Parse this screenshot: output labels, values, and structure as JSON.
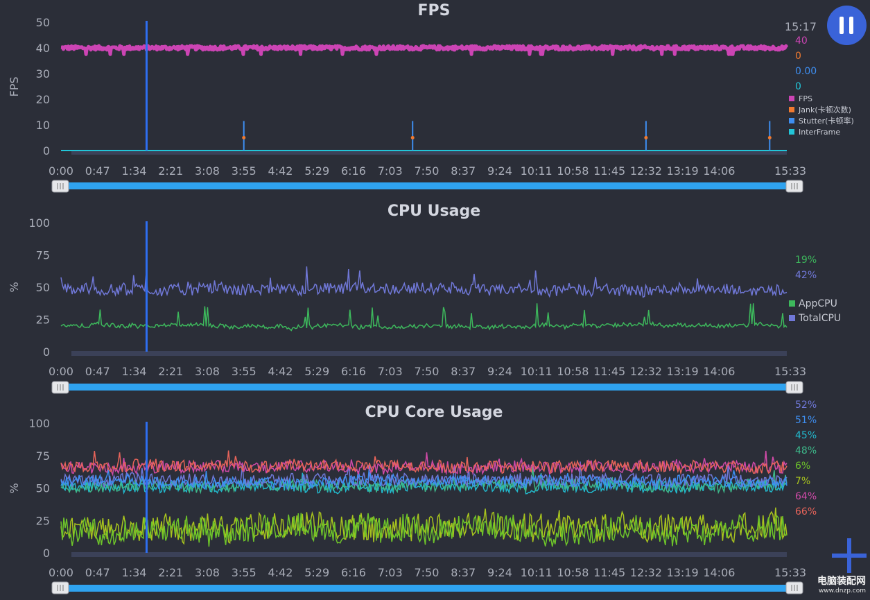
{
  "x_ticks": [
    "0:00",
    "0:47",
    "1:34",
    "2:21",
    "3:08",
    "3:55",
    "4:42",
    "5:29",
    "6:16",
    "7:03",
    "7:50",
    "8:37",
    "9:24",
    "10:11",
    "10:58",
    "11:45",
    "12:32",
    "13:19",
    "14:06",
    "15:33"
  ],
  "current_time": "15:17",
  "watermark": {
    "line1": "电脑装配网",
    "line2": "www.dnzp.com"
  },
  "colors": {
    "background": "#2b2e38",
    "accent": "#3a63d8",
    "slider": "#2fa3f0"
  },
  "chart_data": [
    {
      "type": "line",
      "title": "FPS",
      "ylabel": "FPS",
      "ylim": [
        0,
        50
      ],
      "yticks": [
        0,
        10,
        20,
        30,
        40,
        50
      ],
      "xlim": [
        "0:00",
        "15:33"
      ],
      "marker_time": "1:50",
      "stutter_spikes": [
        "3:55",
        "7:32",
        "12:32",
        "15:11"
      ],
      "series": [
        {
          "name": "FPS",
          "color": "#cc44b4",
          "current": "40",
          "typical": 40
        },
        {
          "name": "Jank(卡顿次数)",
          "color": "#f07a30",
          "current": "0"
        },
        {
          "name": "Stutter(卡顿率)",
          "color": "#3e8ef0",
          "current": "0.00"
        },
        {
          "name": "InterFrame",
          "color": "#22c5d8",
          "current": "0"
        }
      ]
    },
    {
      "type": "line",
      "title": "CPU Usage",
      "ylabel": "%",
      "ylim": [
        0,
        100
      ],
      "yticks": [
        0,
        25,
        50,
        75,
        100
      ],
      "xlim": [
        "0:00",
        "15:33"
      ],
      "marker_time": "1:50",
      "series": [
        {
          "name": "AppCPU",
          "color": "#3db85c",
          "current": "19%",
          "typical": 20
        },
        {
          "name": "TotalCPU",
          "color": "#7078d8",
          "current": "42%",
          "typical": 48
        }
      ]
    },
    {
      "type": "line",
      "title": "CPU Core Usage",
      "ylabel": "%",
      "ylim": [
        0,
        100
      ],
      "yticks": [
        0,
        25,
        50,
        75,
        100
      ],
      "xlim": [
        "0:00",
        "15:33"
      ],
      "marker_time": "1:50",
      "series": [
        {
          "color": "#6f78d8",
          "current": "52%",
          "typical": 56
        },
        {
          "color": "#3e8ef0",
          "current": "51%",
          "typical": 55
        },
        {
          "color": "#22b8cc",
          "current": "45%",
          "typical": 51
        },
        {
          "color": "#3db88a",
          "current": "48%",
          "typical": 52
        },
        {
          "color": "#6dc42a",
          "current": "6%",
          "typical": 18
        },
        {
          "color": "#a8c41e",
          "current": "7%",
          "typical": 20
        },
        {
          "color": "#d04aa8",
          "current": "64%",
          "typical": 66
        },
        {
          "color": "#e8645a",
          "current": "66%",
          "typical": 67
        }
      ]
    }
  ]
}
